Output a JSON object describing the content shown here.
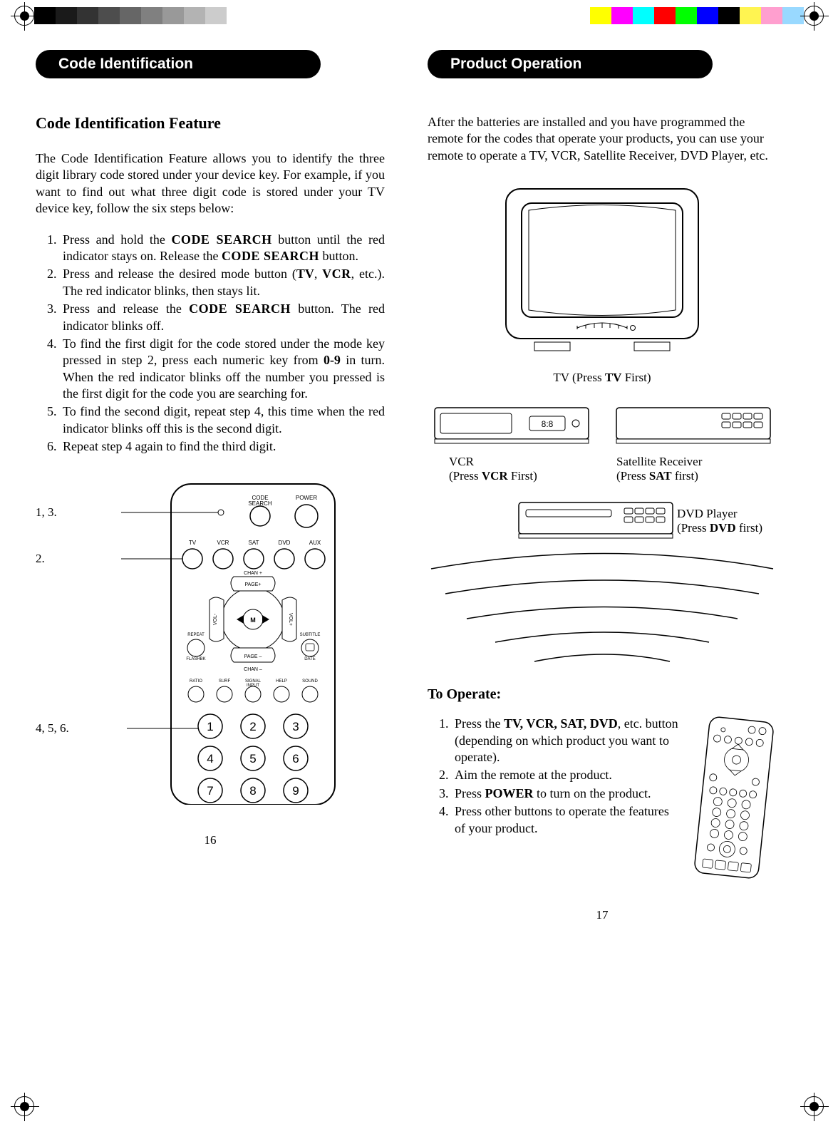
{
  "color_bars": {
    "left": [
      "#000000",
      "#1a1a1a",
      "#333333",
      "#4d4d4d",
      "#666666",
      "#808080",
      "#999999",
      "#b3b3b3",
      "#cccccc"
    ],
    "right": [
      "#ffff00",
      "#ff00ff",
      "#00ffff",
      "#ff0000",
      "#00ff00",
      "#0000ff",
      "#000000",
      "#fff451",
      "#ff9fcf",
      "#99d9ff"
    ]
  },
  "left_column": {
    "header": "Code Identification",
    "feature_title": "Code Identification Feature",
    "intro": "The Code Identification Feature allows you to identify the three digit library code stored under your device key. For example, if you want to find out what three digit code is stored under your TV device key, follow the six steps below:",
    "steps": [
      {
        "pre": "Press and hold the ",
        "sc1": "CODE SEARCH",
        "mid1": " button until the red indicator stays on. Release the ",
        "sc2": "CODE SEARCH",
        "post": " button."
      },
      {
        "pre": "Press and release the desired mode button (",
        "b1": "TV",
        "mid1": ", ",
        "sc1": "VCR",
        "post": ", etc.). The red indicator blinks, then stays lit."
      },
      {
        "pre": "Press and release the ",
        "sc1": "CODE SEARCH",
        "post": " button. The red indicator blinks off."
      },
      {
        "plain": "To find the first digit for the code stored under the mode key pressed in step 2, press each numeric key from ",
        "b1": "0-9",
        "post": " in turn. When the red indicator blinks off the number you pressed is the first digit for the code you are searching for."
      },
      {
        "plain": "To find the second digit, repeat step 4, this time when the red indicator blinks off this is the second digit."
      },
      {
        "plain": "Repeat step 4 again to find the third digit."
      }
    ],
    "remote_labels": {
      "a": "1, 3.",
      "b": "2.",
      "c": "4, 5, 6."
    },
    "remote": {
      "top_labels": {
        "code_search": "CODE\nSEARCH",
        "power": "POWER"
      },
      "mode_row": [
        "TV",
        "VCR",
        "SAT",
        "DVD",
        "AUX"
      ],
      "chan_up": "CHAN +",
      "chan_dn": "CHAN –",
      "vol_l": "VOL-",
      "vol_r": "VOL+",
      "page_up": "PAGE+",
      "page_dn": "PAGE –",
      "repeat": "REPEAT",
      "subtitle": "SUBTITLE",
      "flashbk": "FLASHBK",
      "date": "DATE",
      "row_small": [
        "RATIO",
        "SURF",
        "SIGNAL\nINPUT",
        "HELP",
        "SOUND"
      ],
      "digits": [
        "1",
        "2",
        "3",
        "4",
        "5",
        "6",
        "7",
        "8",
        "9"
      ]
    },
    "page_number": "16"
  },
  "right_column": {
    "header": "Product Operation",
    "intro": "After the batteries are installed and you have programmed the remote for the codes that operate your products, you can use your remote to operate a TV, VCR, Satellite Receiver, DVD Player, etc.",
    "tv_caption_pre": "TV (Press ",
    "tv_caption_b": "TV",
    "tv_caption_post": " First)",
    "vcr_line1": "VCR",
    "vcr_line2_pre": "(Press ",
    "vcr_line2_b": "VCR",
    "vcr_line2_post": " First)",
    "sat_line1": "Satellite Receiver",
    "sat_line2_pre": "(Press ",
    "sat_line2_b": "SAT",
    "sat_line2_post": " first)",
    "dvd_line1": "DVD Player",
    "dvd_line2_pre": "(Press ",
    "dvd_line2_b": "DVD",
    "dvd_line2_post": " first)",
    "to_operate_title": "To Operate:",
    "operate_steps": [
      {
        "pre": "Press the ",
        "b": "TV, VCR, SAT, DVD",
        "post": ", etc. button (depending on which product you want to operate)."
      },
      {
        "plain": "Aim the remote at the product."
      },
      {
        "pre": "Press ",
        "b": "POWER",
        "post": " to turn on the product."
      },
      {
        "plain": "Press other buttons to operate the features of your product."
      }
    ],
    "page_number": "17"
  }
}
